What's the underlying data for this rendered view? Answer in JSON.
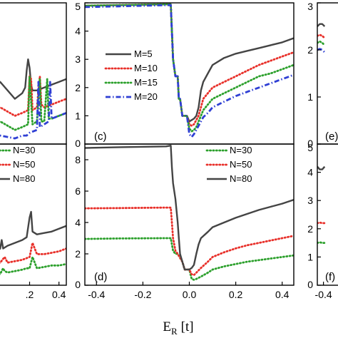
{
  "figure": {
    "xlabel_main": "E",
    "xlabel_sub": "R",
    "xlabel_unit": "[t]"
  },
  "chart_data": [
    {
      "id": "b",
      "type": "line",
      "panel_label": "",
      "xlim": [
        -0.05,
        0.45
      ],
      "ylim": [
        0,
        5
      ],
      "x_ticks": [],
      "x_ticklabels": [],
      "y_ticks": [],
      "y_ticklabels": [],
      "legend": [],
      "series": [
        {
          "name": "",
          "color": "#444444",
          "dash": "solid",
          "x": [
            -0.05,
            0.0,
            0.1,
            0.15,
            0.17,
            0.18,
            0.19,
            0.2,
            0.21,
            0.22,
            0.25,
            0.3,
            0.35,
            0.4,
            0.45
          ],
          "y": [
            1.9,
            2.2,
            1.6,
            1.8,
            2.0,
            2.6,
            3.0,
            2.7,
            2.1,
            1.9,
            1.9,
            2.0,
            2.1,
            2.2,
            2.3
          ]
        },
        {
          "name": "",
          "color": "#e8302a",
          "dash": "dot",
          "x": [
            -0.05,
            0.0,
            0.1,
            0.15,
            0.19,
            0.2,
            0.21,
            0.22,
            0.25,
            0.27,
            0.28,
            0.3,
            0.35,
            0.4,
            0.45
          ],
          "y": [
            1.2,
            1.3,
            1.0,
            1.1,
            1.2,
            2.4,
            2.3,
            1.2,
            1.3,
            2.4,
            1.4,
            1.3,
            1.4,
            1.5,
            1.6
          ]
        },
        {
          "name": "",
          "color": "#2ca02c",
          "dash": "dot",
          "x": [
            -0.05,
            0.0,
            0.1,
            0.15,
            0.19,
            0.2,
            0.22,
            0.25,
            0.27,
            0.28,
            0.3,
            0.32,
            0.33,
            0.35,
            0.4,
            0.45
          ],
          "y": [
            0.7,
            0.8,
            0.5,
            0.6,
            0.7,
            2.4,
            0.7,
            0.8,
            2.3,
            0.8,
            0.8,
            2.3,
            0.9,
            0.9,
            1.0,
            1.1
          ]
        },
        {
          "name": "",
          "color": "#2f3fd4",
          "dash": "dashdot",
          "x": [
            -0.05,
            0.0,
            0.1,
            0.15,
            0.18,
            0.2,
            0.25,
            0.26,
            0.27,
            0.3,
            0.33,
            0.34,
            0.35,
            0.4,
            0.45
          ],
          "y": [
            0.3,
            0.3,
            0.2,
            0.3,
            0.3,
            0.4,
            0.5,
            2.2,
            0.6,
            0.7,
            0.8,
            2.2,
            0.9,
            1.0,
            1.1
          ]
        }
      ]
    },
    {
      "id": "c",
      "type": "line",
      "panel_label": "(c)",
      "xlim": [
        -0.45,
        0.45
      ],
      "ylim": [
        0,
        5
      ],
      "x_ticks": [],
      "x_ticklabels": [],
      "y_ticks": [
        0,
        1,
        2,
        3,
        4,
        5
      ],
      "y_ticklabels": [
        "0",
        "1",
        "2",
        "3",
        "4",
        "5"
      ],
      "legend": [
        "M=5",
        "M=10",
        "M=15",
        "M=20"
      ],
      "series": [
        {
          "name": "M=5",
          "color": "#444444",
          "dash": "solid",
          "x": [
            -0.45,
            -0.3,
            -0.1,
            -0.08,
            -0.07,
            -0.06,
            -0.05,
            -0.045,
            -0.04,
            -0.03,
            -0.02,
            -0.01,
            0.0,
            0.01,
            0.02,
            0.03,
            0.04,
            0.05,
            0.06,
            0.08,
            0.1,
            0.15,
            0.2,
            0.25,
            0.3,
            0.35,
            0.4,
            0.45
          ],
          "y": [
            4.9,
            4.92,
            4.95,
            4.95,
            3.0,
            2.4,
            2.4,
            1.6,
            1.6,
            1.0,
            1.0,
            1.0,
            0.8,
            0.85,
            0.9,
            1.0,
            1.3,
            1.9,
            2.2,
            2.5,
            2.8,
            3.05,
            3.2,
            3.3,
            3.4,
            3.5,
            3.6,
            3.75
          ]
        },
        {
          "name": "M=10",
          "color": "#e8302a",
          "dash": "dot",
          "x": [
            -0.45,
            -0.3,
            -0.1,
            -0.08,
            -0.07,
            -0.06,
            -0.05,
            -0.045,
            -0.04,
            -0.03,
            -0.02,
            -0.01,
            0.0,
            0.01,
            0.02,
            0.03,
            0.04,
            0.05,
            0.06,
            0.08,
            0.1,
            0.15,
            0.2,
            0.25,
            0.3,
            0.35,
            0.4,
            0.45
          ],
          "y": [
            4.9,
            4.92,
            4.95,
            4.95,
            3.0,
            2.4,
            2.4,
            1.6,
            1.6,
            1.0,
            1.0,
            1.0,
            0.7,
            0.65,
            0.7,
            0.85,
            1.0,
            1.3,
            1.6,
            1.8,
            2.0,
            2.2,
            2.4,
            2.6,
            2.8,
            2.95,
            3.1,
            3.25
          ]
        },
        {
          "name": "M=15",
          "color": "#2ca02c",
          "dash": "dot",
          "x": [
            -0.45,
            -0.3,
            -0.1,
            -0.08,
            -0.07,
            -0.06,
            -0.05,
            -0.045,
            -0.04,
            -0.03,
            -0.02,
            -0.01,
            0.0,
            0.01,
            0.02,
            0.03,
            0.04,
            0.05,
            0.06,
            0.08,
            0.1,
            0.15,
            0.2,
            0.25,
            0.3,
            0.35,
            0.4,
            0.45
          ],
          "y": [
            4.9,
            4.92,
            4.95,
            4.95,
            3.0,
            2.4,
            2.4,
            1.6,
            1.6,
            1.0,
            1.0,
            1.0,
            0.55,
            0.45,
            0.5,
            0.6,
            0.8,
            1.0,
            1.2,
            1.4,
            1.6,
            1.8,
            2.0,
            2.2,
            2.4,
            2.5,
            2.65,
            2.8
          ]
        },
        {
          "name": "M=20",
          "color": "#2f3fd4",
          "dash": "dashdot",
          "x": [
            -0.45,
            -0.3,
            -0.1,
            -0.08,
            -0.07,
            -0.06,
            -0.05,
            -0.045,
            -0.04,
            -0.03,
            -0.02,
            -0.01,
            0.0,
            0.01,
            0.02,
            0.03,
            0.04,
            0.05,
            0.06,
            0.08,
            0.1,
            0.15,
            0.2,
            0.25,
            0.3,
            0.35,
            0.4,
            0.45
          ],
          "y": [
            4.85,
            4.88,
            4.92,
            4.92,
            3.0,
            2.4,
            2.4,
            1.6,
            1.6,
            1.0,
            1.0,
            1.0,
            0.35,
            0.25,
            0.35,
            0.5,
            0.65,
            0.8,
            0.95,
            1.1,
            1.3,
            1.5,
            1.7,
            1.85,
            2.0,
            2.15,
            2.3,
            2.45
          ]
        }
      ]
    },
    {
      "id": "e",
      "type": "line",
      "panel_label": "(e)",
      "xlim": [
        -0.45,
        0.45
      ],
      "ylim": [
        0,
        3
      ],
      "x_ticks": [],
      "x_ticklabels": [],
      "y_ticks": [
        0,
        1,
        2,
        3
      ],
      "y_ticklabels": [
        "0",
        "1",
        "2",
        "3"
      ],
      "legend": [],
      "series": [
        {
          "name": "",
          "color": "#444444",
          "dash": "solid",
          "x": [
            -0.45,
            -0.43,
            -0.41,
            -0.39
          ],
          "y": [
            2.5,
            2.55,
            2.55,
            2.5
          ]
        },
        {
          "name": "",
          "color": "#e8302a",
          "dash": "dot",
          "x": [
            -0.45,
            -0.43,
            -0.41,
            -0.39
          ],
          "y": [
            2.3,
            2.32,
            2.3,
            2.25
          ]
        },
        {
          "name": "",
          "color": "#2ca02c",
          "dash": "dot",
          "x": [
            -0.45,
            -0.43,
            -0.41,
            -0.39
          ],
          "y": [
            2.15,
            2.18,
            2.15,
            2.1
          ]
        },
        {
          "name": "",
          "color": "#2f3fd4",
          "dash": "dashdot",
          "x": [
            -0.45,
            -0.43,
            -0.41,
            -0.39
          ],
          "y": [
            2.0,
            2.02,
            2.0,
            1.95
          ]
        }
      ]
    },
    {
      "id": "a2",
      "type": "line",
      "panel_label": "",
      "xlim": [
        -0.05,
        0.45
      ],
      "ylim": [
        0,
        5
      ],
      "x_ticks": [
        0.2,
        0.4
      ],
      "x_ticklabels": [
        ".2",
        "0.4"
      ],
      "y_ticks": [],
      "y_ticklabels": [],
      "legend": [
        "N=30",
        "N=50",
        "N=80"
      ],
      "series": [
        {
          "name": "N=30",
          "color": "#2ca02c",
          "dash": "dot",
          "x": [
            -0.05,
            0.0,
            0.02,
            0.03,
            0.05,
            0.1,
            0.15,
            0.18,
            0.2,
            0.22,
            0.25,
            0.3,
            0.35,
            0.4,
            0.45
          ],
          "y": [
            0.3,
            0.4,
            0.6,
            0.5,
            0.45,
            0.5,
            0.55,
            0.6,
            0.6,
            1.0,
            0.6,
            0.65,
            0.7,
            0.7,
            0.75
          ]
        },
        {
          "name": "N=50",
          "color": "#e8302a",
          "dash": "dot",
          "x": [
            -0.05,
            0.0,
            0.03,
            0.05,
            0.1,
            0.15,
            0.2,
            0.22,
            0.25,
            0.3,
            0.35,
            0.4,
            0.45
          ],
          "y": [
            0.7,
            0.8,
            1.0,
            0.8,
            0.85,
            0.9,
            1.0,
            1.5,
            1.1,
            1.1,
            1.15,
            1.2,
            1.3
          ]
        },
        {
          "name": "N=80",
          "color": "#444444",
          "dash": "solid",
          "x": [
            -0.05,
            -0.02,
            0.0,
            0.01,
            0.02,
            0.05,
            0.1,
            0.15,
            0.18,
            0.2,
            0.21,
            0.22,
            0.25,
            0.3,
            0.35,
            0.4,
            0.45
          ],
          "y": [
            1.0,
            1.2,
            1.3,
            1.6,
            1.3,
            1.4,
            1.5,
            1.6,
            1.7,
            2.4,
            2.6,
            1.9,
            1.8,
            1.85,
            1.9,
            2.0,
            2.1
          ]
        }
      ]
    },
    {
      "id": "d",
      "type": "line",
      "panel_label": "(d)",
      "xlim": [
        -0.45,
        0.45
      ],
      "ylim": [
        0,
        9
      ],
      "x_ticks": [
        -0.4,
        -0.2,
        0.0,
        0.2,
        0.4
      ],
      "x_ticklabels": [
        "-0.4",
        "-0.2",
        "0.0",
        "0.2",
        "0.4"
      ],
      "y_ticks": [
        0,
        2,
        4,
        6,
        8
      ],
      "y_ticklabels": [
        "0",
        "2",
        "4",
        "6",
        "8"
      ],
      "legend": [
        "N=30",
        "N=50",
        "N=80"
      ],
      "series": [
        {
          "name": "N=30",
          "color": "#2ca02c",
          "dash": "dot",
          "x": [
            -0.45,
            -0.3,
            -0.1,
            -0.08,
            -0.07,
            -0.06,
            -0.05,
            -0.03,
            -0.02,
            -0.01,
            0.0,
            0.01,
            0.02,
            0.03,
            0.05,
            0.08,
            0.1,
            0.15,
            0.2,
            0.25,
            0.3,
            0.35,
            0.4,
            0.45
          ],
          "y": [
            2.95,
            2.98,
            3.0,
            3.0,
            2.2,
            2.0,
            2.0,
            1.5,
            1.0,
            1.0,
            1.0,
            0.4,
            0.35,
            0.4,
            0.55,
            0.8,
            1.0,
            1.2,
            1.35,
            1.5,
            1.6,
            1.7,
            1.8,
            1.9
          ]
        },
        {
          "name": "N=50",
          "color": "#e8302a",
          "dash": "dot",
          "x": [
            -0.45,
            -0.3,
            -0.1,
            -0.08,
            -0.07,
            -0.06,
            -0.05,
            -0.03,
            -0.02,
            -0.01,
            0.0,
            0.01,
            0.02,
            0.03,
            0.05,
            0.08,
            0.1,
            0.15,
            0.2,
            0.25,
            0.3,
            0.35,
            0.4,
            0.45
          ],
          "y": [
            4.9,
            4.92,
            4.95,
            4.95,
            3.0,
            2.2,
            2.0,
            1.5,
            1.0,
            1.0,
            1.0,
            0.7,
            0.65,
            0.8,
            1.1,
            1.5,
            1.8,
            2.1,
            2.35,
            2.55,
            2.7,
            2.85,
            3.0,
            3.15
          ]
        },
        {
          "name": "N=80",
          "color": "#444444",
          "dash": "solid",
          "x": [
            -0.45,
            -0.3,
            -0.1,
            -0.08,
            -0.075,
            -0.07,
            -0.06,
            -0.05,
            -0.045,
            -0.04,
            -0.03,
            -0.02,
            -0.01,
            0.0,
            0.01,
            0.02,
            0.03,
            0.04,
            0.05,
            0.08,
            0.1,
            0.15,
            0.2,
            0.25,
            0.3,
            0.35,
            0.4,
            0.45
          ],
          "y": [
            8.75,
            8.8,
            8.85,
            8.9,
            7.5,
            6.5,
            5.5,
            4.0,
            3.0,
            2.0,
            1.5,
            1.0,
            1.0,
            1.0,
            1.1,
            1.3,
            2.0,
            2.6,
            3.0,
            3.4,
            3.7,
            4.0,
            4.3,
            4.55,
            4.8,
            5.0,
            5.2,
            5.45
          ]
        }
      ]
    },
    {
      "id": "f",
      "type": "line",
      "panel_label": "(f)",
      "xlim": [
        -0.45,
        0.45
      ],
      "ylim": [
        0,
        5
      ],
      "x_ticks": [
        -0.4
      ],
      "x_ticklabels": [
        "-0.4"
      ],
      "y_ticks": [
        0,
        1,
        2,
        3,
        4,
        5
      ],
      "y_ticklabels": [
        "0",
        "1",
        "2",
        "3",
        "4",
        "5"
      ],
      "legend": [],
      "series": [
        {
          "name": "",
          "color": "#444444",
          "dash": "solid",
          "x": [
            -0.45,
            -0.43,
            -0.41,
            -0.39
          ],
          "y": [
            4.2,
            4.1,
            4.1,
            4.2
          ]
        },
        {
          "name": "",
          "color": "#e8302a",
          "dash": "dot",
          "x": [
            -0.45,
            -0.43,
            -0.41,
            -0.39
          ],
          "y": [
            2.2,
            2.22,
            2.2,
            2.2
          ]
        },
        {
          "name": "",
          "color": "#2ca02c",
          "dash": "dot",
          "x": [
            -0.45,
            -0.43,
            -0.41,
            -0.39
          ],
          "y": [
            1.5,
            1.52,
            1.5,
            1.5
          ]
        }
      ]
    }
  ]
}
